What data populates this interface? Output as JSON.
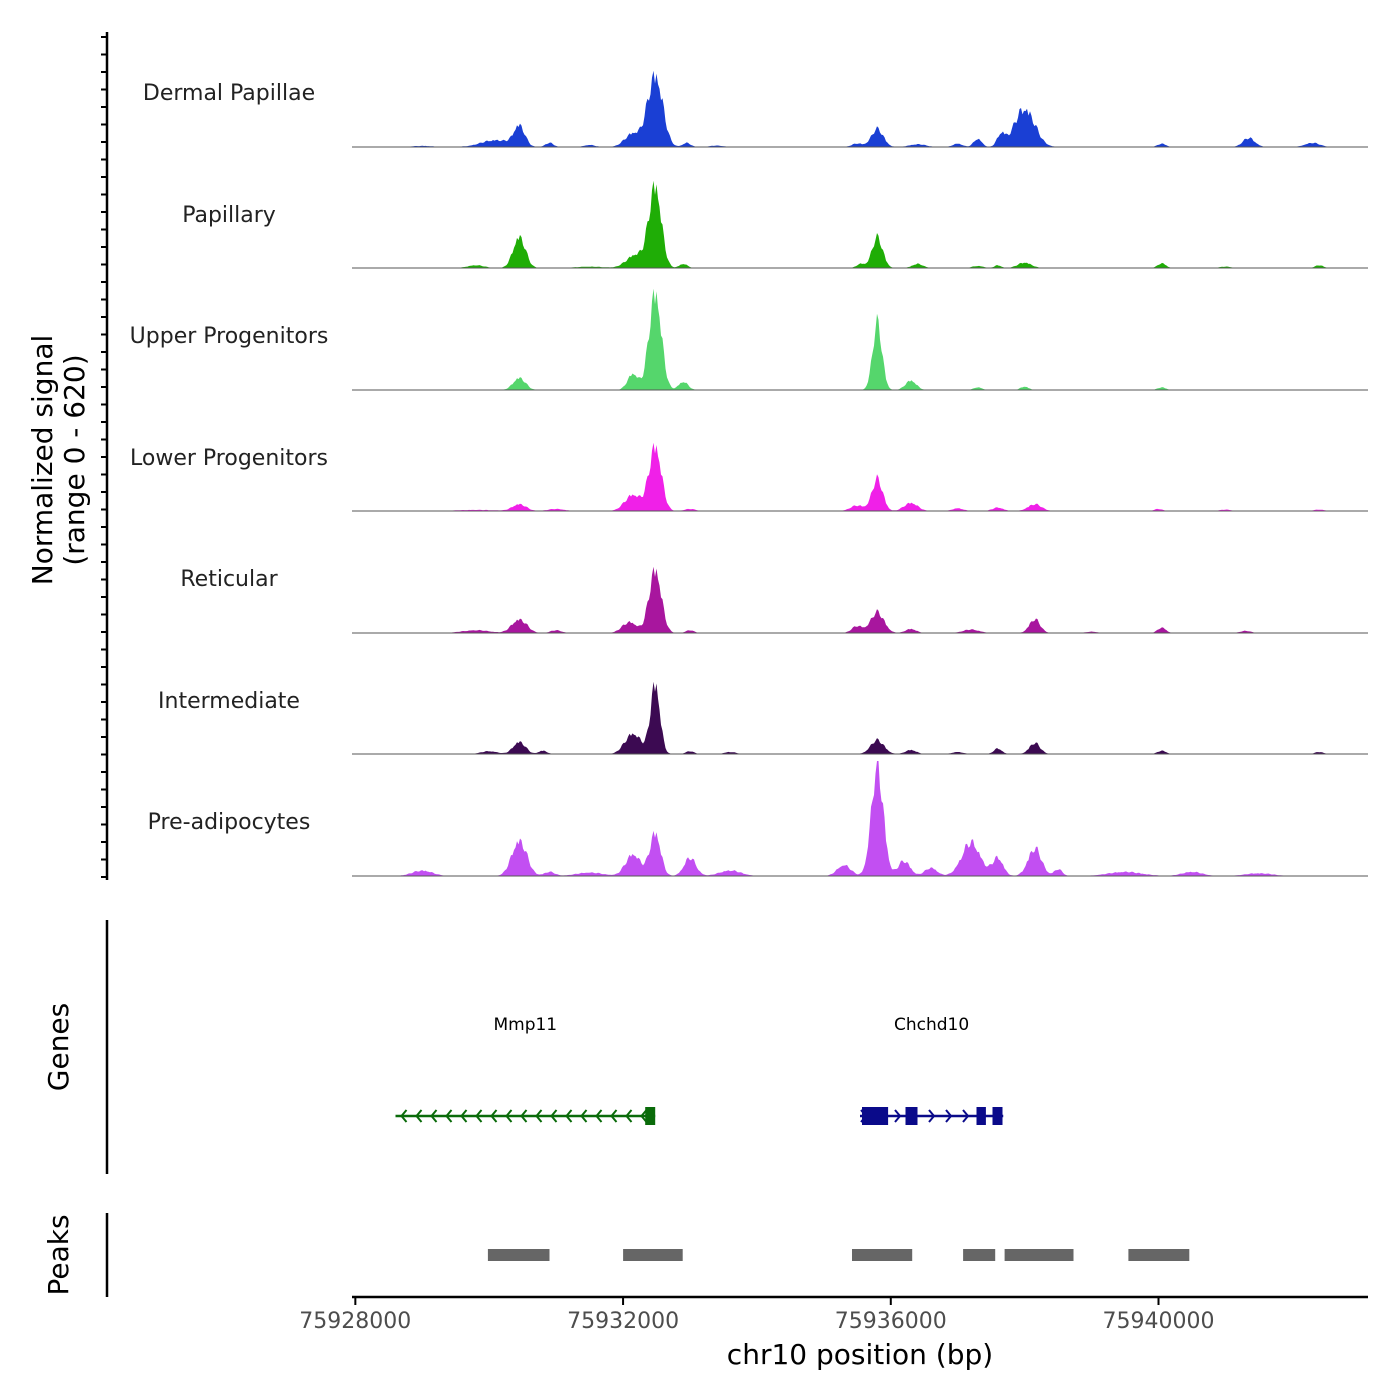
{
  "chart_data": {
    "type": "area",
    "title": "",
    "xlabel": "chr10 position (bp)",
    "ylabel": "Normalized signal",
    "ylabel_range": "(range 0 - 620)",
    "ylim": [
      0,
      620
    ],
    "xlim": [
      75927950,
      75943130
    ],
    "x_ticks": [
      75928000,
      75932000,
      75936000,
      75940000
    ],
    "x_tick_labels": [
      "75928000",
      "75932000",
      "75936000",
      "75940000"
    ],
    "series": [
      {
        "name": "Dermal Papillae",
        "color": "#1a3fd4",
        "peaks": [
          [
            75929000,
            8,
            150
          ],
          [
            75930100,
            50,
            220
          ],
          [
            75930450,
            150,
            80
          ],
          [
            75930900,
            30,
            60
          ],
          [
            75931500,
            15,
            80
          ],
          [
            75932150,
            100,
            120
          ],
          [
            75932480,
            530,
            110
          ],
          [
            75932950,
            30,
            60
          ],
          [
            75933400,
            10,
            100
          ],
          [
            75935500,
            25,
            80
          ],
          [
            75935800,
            130,
            90
          ],
          [
            75936400,
            20,
            120
          ],
          [
            75937000,
            25,
            70
          ],
          [
            75937300,
            60,
            60
          ],
          [
            75937650,
            90,
            60
          ],
          [
            75938000,
            280,
            150
          ],
          [
            75940050,
            25,
            60
          ],
          [
            75941350,
            65,
            90
          ],
          [
            75942300,
            30,
            110
          ]
        ]
      },
      {
        "name": "Papillary",
        "color": "#1fad06",
        "peaks": [
          [
            75929800,
            20,
            120
          ],
          [
            75930450,
            230,
            90
          ],
          [
            75931500,
            10,
            200
          ],
          [
            75932200,
            100,
            140
          ],
          [
            75932480,
            600,
            90
          ],
          [
            75932900,
            30,
            60
          ],
          [
            75935550,
            30,
            60
          ],
          [
            75935800,
            220,
            80
          ],
          [
            75936400,
            30,
            80
          ],
          [
            75937300,
            15,
            80
          ],
          [
            75937600,
            20,
            50
          ],
          [
            75938000,
            40,
            100
          ],
          [
            75940050,
            35,
            60
          ],
          [
            75941000,
            10,
            80
          ],
          [
            75942400,
            20,
            60
          ]
        ]
      },
      {
        "name": "Upper Progenitors",
        "color": "#55d66c",
        "peaks": [
          [
            75930450,
            90,
            90
          ],
          [
            75932150,
            120,
            80
          ],
          [
            75932480,
            720,
            90
          ],
          [
            75932900,
            60,
            70
          ],
          [
            75935800,
            480,
            70
          ],
          [
            75936300,
            70,
            80
          ],
          [
            75937300,
            20,
            60
          ],
          [
            75938000,
            25,
            60
          ],
          [
            75940050,
            20,
            60
          ]
        ]
      },
      {
        "name": "Lower Progenitors",
        "color": "#f020e8",
        "peaks": [
          [
            75929800,
            8,
            300
          ],
          [
            75930450,
            50,
            100
          ],
          [
            75931000,
            15,
            120
          ],
          [
            75932150,
            120,
            120
          ],
          [
            75932480,
            480,
            90
          ],
          [
            75933000,
            15,
            80
          ],
          [
            75935500,
            40,
            100
          ],
          [
            75935800,
            230,
            80
          ],
          [
            75936300,
            60,
            100
          ],
          [
            75937000,
            20,
            80
          ],
          [
            75937600,
            25,
            80
          ],
          [
            75938150,
            50,
            100
          ],
          [
            75940000,
            15,
            60
          ],
          [
            75941000,
            10,
            80
          ],
          [
            75942400,
            10,
            80
          ]
        ]
      },
      {
        "name": "Reticular",
        "color": "#a8169e",
        "peaks": [
          [
            75929800,
            20,
            200
          ],
          [
            75930450,
            100,
            110
          ],
          [
            75931000,
            20,
            80
          ],
          [
            75932100,
            80,
            110
          ],
          [
            75932480,
            470,
            90
          ],
          [
            75933000,
            20,
            60
          ],
          [
            75935500,
            50,
            80
          ],
          [
            75935800,
            150,
            100
          ],
          [
            75936300,
            30,
            80
          ],
          [
            75937200,
            25,
            120
          ],
          [
            75938150,
            100,
            80
          ],
          [
            75939000,
            10,
            80
          ],
          [
            75940050,
            40,
            60
          ],
          [
            75941300,
            15,
            80
          ]
        ]
      },
      {
        "name": "Intermediate",
        "color": "#3c0a52",
        "peaks": [
          [
            75930000,
            20,
            120
          ],
          [
            75930450,
            90,
            90
          ],
          [
            75930800,
            25,
            60
          ],
          [
            75932150,
            150,
            120
          ],
          [
            75932480,
            520,
            70
          ],
          [
            75933000,
            20,
            60
          ],
          [
            75933600,
            15,
            80
          ],
          [
            75935800,
            100,
            100
          ],
          [
            75936300,
            30,
            80
          ],
          [
            75937000,
            15,
            80
          ],
          [
            75937600,
            40,
            60
          ],
          [
            75938150,
            80,
            80
          ],
          [
            75940050,
            25,
            60
          ],
          [
            75942400,
            15,
            60
          ]
        ]
      },
      {
        "name": "Pre-adipocytes",
        "color": "#c24ff2",
        "peaks": [
          [
            75929000,
            40,
            150
          ],
          [
            75930450,
            260,
            110
          ],
          [
            75930900,
            30,
            80
          ],
          [
            75931500,
            25,
            200
          ],
          [
            75932150,
            160,
            110
          ],
          [
            75932480,
            320,
            80
          ],
          [
            75933000,
            130,
            90
          ],
          [
            75933600,
            40,
            160
          ],
          [
            75935300,
            80,
            100
          ],
          [
            75935800,
            790,
            90
          ],
          [
            75936200,
            110,
            90
          ],
          [
            75936600,
            60,
            90
          ],
          [
            75937200,
            240,
            140
          ],
          [
            75937600,
            130,
            80
          ],
          [
            75938150,
            200,
            100
          ],
          [
            75938500,
            50,
            60
          ],
          [
            75939500,
            30,
            250
          ],
          [
            75940500,
            30,
            150
          ],
          [
            75941500,
            20,
            200
          ]
        ]
      }
    ],
    "genes": [
      {
        "name": "Mmp11",
        "strand": "-",
        "start": 75928600,
        "end": 75932480,
        "exons": [
          [
            75932330,
            75932480
          ]
        ]
      },
      {
        "name": "Chchd10",
        "strand": "+",
        "start": 75935540,
        "end": 75937680,
        "exons": [
          [
            75935570,
            75935960
          ],
          [
            75936220,
            75936400
          ],
          [
            75937280,
            75937420
          ],
          [
            75937520,
            75937670
          ]
        ]
      }
    ],
    "peaks_regions": [
      [
        75929980,
        75930900
      ],
      [
        75932000,
        75932890
      ],
      [
        75935420,
        75936320
      ],
      [
        75937080,
        75937560
      ],
      [
        75937700,
        75938730
      ],
      [
        75939550,
        75940460
      ]
    ],
    "panels": [
      "Genes",
      "Peaks"
    ]
  }
}
